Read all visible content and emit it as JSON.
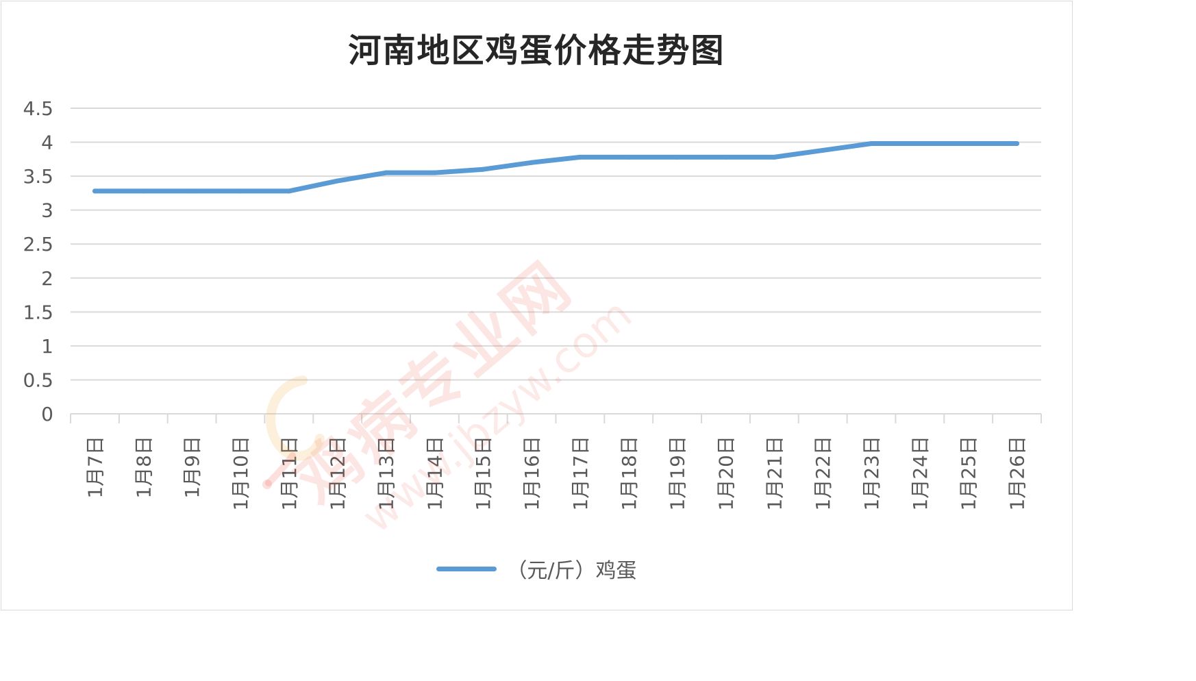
{
  "chart_data": {
    "type": "line",
    "title": "河南地区鸡蛋价格走势图",
    "categories": [
      "1月7日",
      "1月8日",
      "1月9日",
      "1月10日",
      "1月11日",
      "1月12日",
      "1月13日",
      "1月14日",
      "1月15日",
      "1月16日",
      "1月17日",
      "1月18日",
      "1月19日",
      "1月20日",
      "1月21日",
      "1月22日",
      "1月23日",
      "1月24日",
      "1月25日",
      "1月26日"
    ],
    "series": [
      {
        "name": "（元/斤）鸡蛋",
        "values": [
          3.28,
          3.28,
          3.28,
          3.28,
          3.28,
          3.43,
          3.55,
          3.55,
          3.6,
          3.7,
          3.78,
          3.78,
          3.78,
          3.78,
          3.78,
          3.88,
          3.98,
          3.98,
          3.98,
          3.98
        ],
        "color": "#5b9bd5"
      }
    ],
    "ylim": [
      0,
      4.5
    ],
    "yticks": [
      "0",
      "0.5",
      "1",
      "1.5",
      "2",
      "2.5",
      "3",
      "3.5",
      "4",
      "4.5"
    ],
    "xlabel": "",
    "ylabel": "",
    "grid": true,
    "legend_position": "bottom"
  },
  "watermark": {
    "text": "鸡病专业网",
    "url": "www.jbzyw.com"
  }
}
